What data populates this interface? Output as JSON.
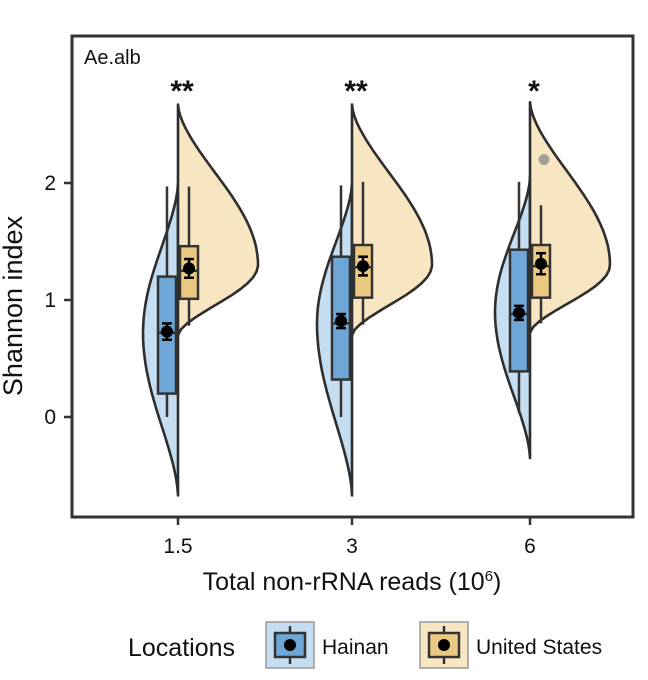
{
  "chart_data": {
    "type": "violin",
    "panel_label": "Ae.alb",
    "xlabel": "Total non-rRNA reads (10",
    "xlabel_superscript": "6",
    "xlabel_suffix": ")",
    "ylabel": "Shannon index",
    "yticks": [
      0,
      1,
      2
    ],
    "ylim": [
      -0.7,
      3.1
    ],
    "categories": [
      "1.5",
      "3",
      "6"
    ],
    "significance": [
      "**",
      "**",
      "*"
    ],
    "legend": {
      "title": "Locations",
      "position": "bottom"
    },
    "series": [
      {
        "name": "Hainan",
        "color": "#6ea6d6",
        "violin_color": "#c5ddf1",
        "side": "left",
        "groups": [
          {
            "category": "1.5",
            "whisker_low": 0.0,
            "q1": 0.2,
            "median": 0.72,
            "q3": 1.2,
            "whisker_high": 1.97,
            "mean": 0.73,
            "mean_err": 0.07,
            "violin_min": -0.67,
            "violin_max": 2.0,
            "peak": 0.72,
            "outliers": []
          },
          {
            "category": "3",
            "whisker_low": 0.0,
            "q1": 0.32,
            "median": 0.8,
            "q3": 1.37,
            "whisker_high": 1.98,
            "mean": 0.82,
            "mean_err": 0.06,
            "violin_min": -0.67,
            "violin_max": 2.0,
            "peak": 0.8,
            "outliers": []
          },
          {
            "category": "6",
            "whisker_low": 0.03,
            "q1": 0.39,
            "median": 0.88,
            "q3": 1.43,
            "whisker_high": 2.01,
            "mean": 0.89,
            "mean_err": 0.06,
            "violin_min": -0.35,
            "violin_max": 2.05,
            "peak": 0.9,
            "outliers": []
          }
        ]
      },
      {
        "name": "United States",
        "color": "#ecc983",
        "violin_color": "#f8e6c2",
        "side": "right",
        "groups": [
          {
            "category": "1.5",
            "whisker_low": 0.78,
            "q1": 1.01,
            "median": 1.25,
            "q3": 1.46,
            "whisker_high": 1.97,
            "mean": 1.27,
            "mean_err": 0.08,
            "violin_min": 0.7,
            "violin_max": 2.67,
            "peak": 1.3,
            "outliers": []
          },
          {
            "category": "3",
            "whisker_low": 0.79,
            "q1": 1.02,
            "median": 1.28,
            "q3": 1.47,
            "whisker_high": 2.01,
            "mean": 1.29,
            "mean_err": 0.08,
            "violin_min": 0.7,
            "violin_max": 2.67,
            "peak": 1.3,
            "outliers": []
          },
          {
            "category": "6",
            "whisker_low": 0.8,
            "q1": 1.02,
            "median": 1.29,
            "q3": 1.47,
            "whisker_high": 1.81,
            "mean": 1.31,
            "mean_err": 0.09,
            "violin_min": 0.72,
            "violin_max": 2.69,
            "peak": 1.3,
            "outliers": [
              2.2
            ]
          }
        ]
      }
    ]
  }
}
